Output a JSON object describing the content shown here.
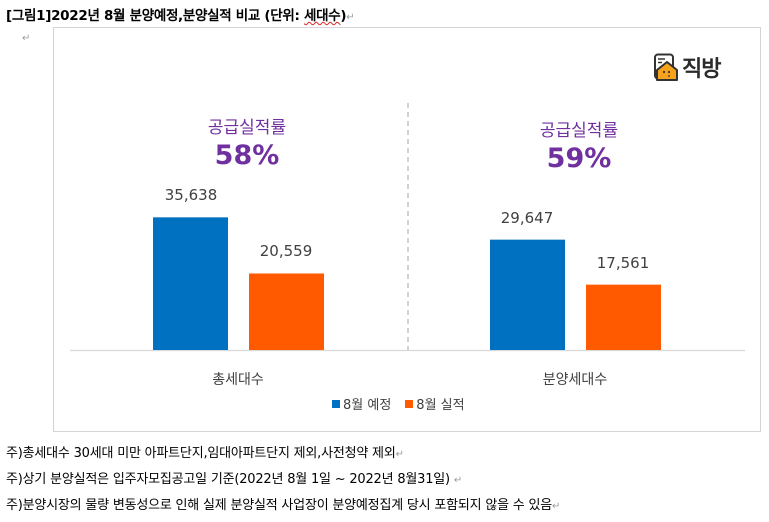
{
  "document": {
    "caption_prefix": "[그림1]2022년 8월 분양예정,분양실적 비교 (단위: ",
    "caption_unit": "세대수",
    "caption_suffix": ")",
    "paragraph_mark": "↵"
  },
  "logo": {
    "text": "직방",
    "icon": "house-icon"
  },
  "colors": {
    "planned": "#0070c0",
    "actual": "#ff5a00",
    "rate": "#7030a0",
    "axis": "#d9d9d9"
  },
  "chart_data": {
    "type": "bar",
    "title": "[그림1]2022년 8월 분양예정,분양실적 비교 (단위: 세대수)",
    "categories": [
      "총세대수",
      "분양세대수"
    ],
    "series": [
      {
        "name": "8월 예정",
        "values": [
          35638,
          29647
        ]
      },
      {
        "name": "8월 실적",
        "values": [
          20559,
          17561
        ]
      }
    ],
    "value_labels": [
      [
        "35,638",
        "29,647"
      ],
      [
        "20,559",
        "17,561"
      ]
    ],
    "annotations": [
      {
        "label": "공급실적률",
        "value": "58%"
      },
      {
        "label": "공급실적률",
        "value": "59%"
      }
    ],
    "ylim": [
      0,
      90000
    ],
    "grid": false,
    "legend": "bottom",
    "xlabel": "",
    "ylabel": ""
  },
  "notes": [
    "주)총세대수 30세대 미만 아파트단지,임대아파트단지 제외,사전청약 제외",
    "주)상기 분양실적은 입주자모집공고일 기준(2022년 8월 1일 ~ 2022년 8월31일) ",
    "주)분양시장의 물량 변동성으로 인해 실제 분양실적 사업장이 분양예정집계 당시 포함되지 않을 수 있음"
  ]
}
